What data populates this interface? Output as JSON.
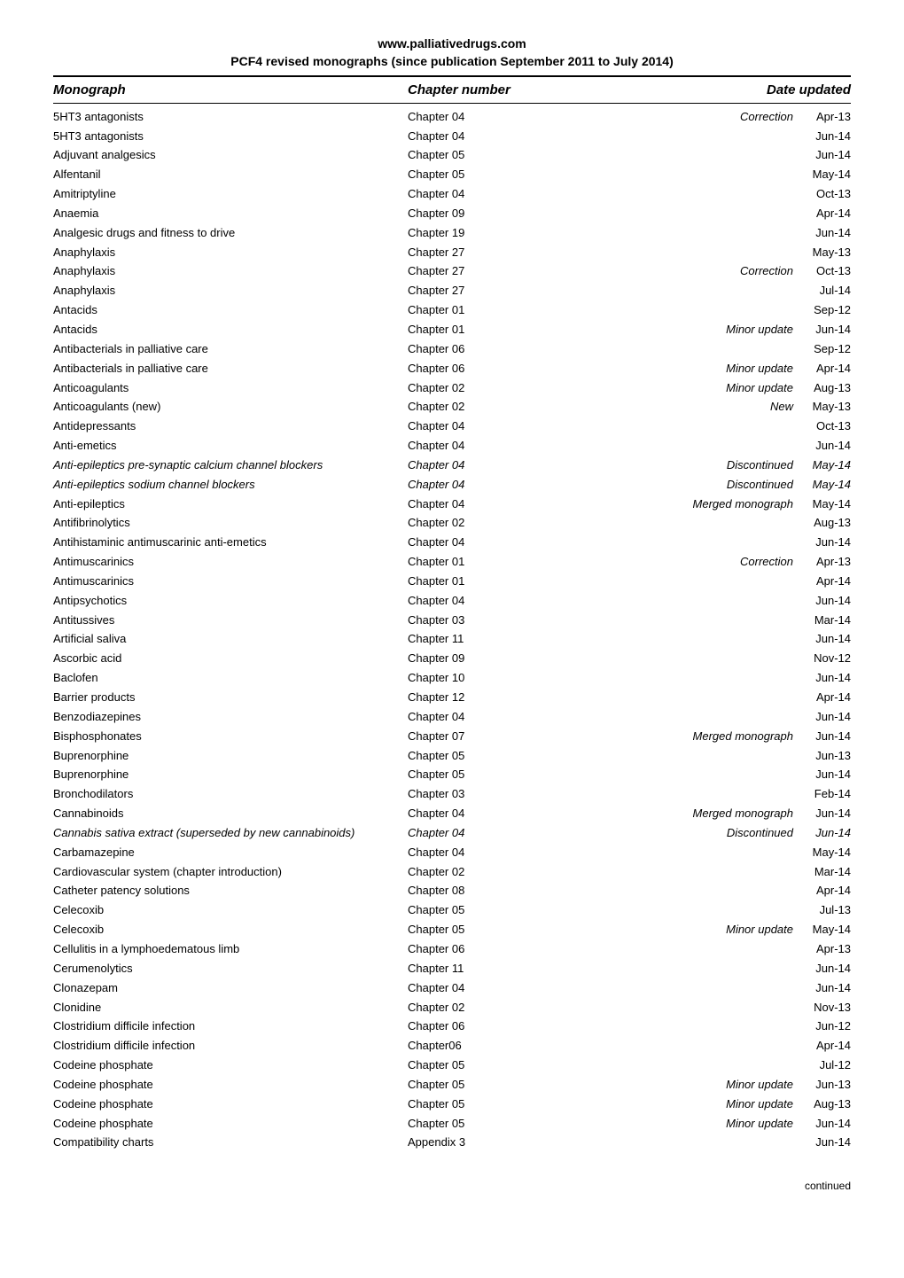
{
  "header": {
    "line1": "www.palliativedrugs.com",
    "line2": "PCF4 revised monographs (since publication September 2011 to July 2014)"
  },
  "columns": {
    "monograph": "Monograph",
    "chapter": "Chapter number",
    "date": "Date updated"
  },
  "footer": "continued",
  "rows": [
    {
      "mono": "5HT3 antagonists",
      "chap": "Chapter 04",
      "note": "Correction",
      "noteItalic": true,
      "date": "Apr-13"
    },
    {
      "mono": "5HT3 antagonists",
      "chap": "Chapter 04",
      "note": "",
      "date": "Jun-14"
    },
    {
      "mono": "Adjuvant analgesics",
      "chap": "Chapter 05",
      "note": "",
      "date": "Jun-14"
    },
    {
      "mono": "Alfentanil",
      "chap": "Chapter 05",
      "note": "",
      "date": "May-14"
    },
    {
      "mono": "Amitriptyline",
      "chap": "Chapter 04",
      "note": "",
      "date": "Oct-13"
    },
    {
      "mono": "Anaemia",
      "chap": "Chapter 09",
      "note": "",
      "date": "Apr-14"
    },
    {
      "mono": "Analgesic drugs and fitness to drive",
      "chap": "Chapter 19",
      "note": "",
      "date": "Jun-14"
    },
    {
      "mono": "Anaphylaxis",
      "chap": "Chapter 27",
      "note": "",
      "date": "May-13"
    },
    {
      "mono": "Anaphylaxis",
      "chap": "Chapter 27",
      "note": "Correction",
      "noteItalic": true,
      "date": "Oct-13"
    },
    {
      "mono": "Anaphylaxis",
      "chap": "Chapter 27",
      "note": "",
      "date": "Jul-14"
    },
    {
      "mono": "Antacids",
      "chap": "Chapter 01",
      "note": "",
      "date": "Sep-12"
    },
    {
      "mono": "Antacids",
      "chap": "Chapter 01",
      "note": "Minor update",
      "noteItalic": true,
      "date": "Jun-14"
    },
    {
      "mono": "Antibacterials in palliative care",
      "chap": "Chapter 06",
      "note": "",
      "date": "Sep-12"
    },
    {
      "mono": "Antibacterials in palliative care",
      "chap": "Chapter 06",
      "note": "Minor update",
      "noteItalic": true,
      "date": "Apr-14"
    },
    {
      "mono": "Anticoagulants",
      "chap": "Chapter 02",
      "note": "Minor update",
      "noteItalic": true,
      "date": "Aug-13"
    },
    {
      "mono": "Anticoagulants (new)",
      "chap": "Chapter 02",
      "note": "New",
      "noteItalic": true,
      "date": "May-13"
    },
    {
      "mono": "Antidepressants",
      "chap": "Chapter 04",
      "note": "",
      "date": "Oct-13"
    },
    {
      "mono": "Anti-emetics",
      "chap": "Chapter 04",
      "note": "",
      "date": "Jun-14"
    },
    {
      "mono": "Anti-epileptics pre-synaptic calcium channel blockers",
      "monoItalic": true,
      "chap": "Chapter 04",
      "chapItalic": true,
      "note": "Discontinued",
      "noteItalic": true,
      "date": "May-14",
      "dateItalic": true
    },
    {
      "mono": "Anti-epileptics sodium channel blockers",
      "monoItalic": true,
      "chap": "Chapter 04",
      "chapItalic": true,
      "note": "Discontinued",
      "noteItalic": true,
      "date": "May-14",
      "dateItalic": true
    },
    {
      "mono": "Anti-epileptics",
      "chap": "Chapter 04",
      "note": "Merged monograph",
      "noteItalic": true,
      "date": "May-14"
    },
    {
      "mono": "Antifibrinolytics",
      "chap": "Chapter 02",
      "note": "",
      "date": "Aug-13"
    },
    {
      "mono": "Antihistaminic antimuscarinic anti-emetics",
      "chap": "Chapter 04",
      "note": "",
      "date": "Jun-14"
    },
    {
      "mono": "Antimuscarinics",
      "chap": "Chapter 01",
      "note": "Correction",
      "noteItalic": true,
      "date": "Apr-13"
    },
    {
      "mono": "Antimuscarinics",
      "chap": "Chapter 01",
      "note": "",
      "date": "Apr-14"
    },
    {
      "mono": "Antipsychotics",
      "chap": "Chapter 04",
      "note": "",
      "date": "Jun-14"
    },
    {
      "mono": "Antitussives",
      "chap": "Chapter 03",
      "note": "",
      "date": "Mar-14"
    },
    {
      "mono": "Artificial saliva",
      "chap": "Chapter 11",
      "note": "",
      "date": "Jun-14"
    },
    {
      "mono": "Ascorbic acid",
      "chap": "Chapter 09",
      "note": "",
      "date": "Nov-12"
    },
    {
      "mono": "Baclofen",
      "chap": "Chapter 10",
      "note": "",
      "date": "Jun-14"
    },
    {
      "mono": "Barrier products",
      "chap": "Chapter 12",
      "note": "",
      "date": "Apr-14"
    },
    {
      "mono": "Benzodiazepines",
      "chap": "Chapter 04",
      "note": "",
      "date": "Jun-14"
    },
    {
      "mono": "Bisphosphonates",
      "chap": "Chapter 07",
      "note": "Merged monograph",
      "noteItalic": true,
      "date": "Jun-14"
    },
    {
      "mono": "Buprenorphine",
      "chap": "Chapter 05",
      "note": "",
      "date": "Jun-13"
    },
    {
      "mono": "Buprenorphine",
      "chap": "Chapter 05",
      "note": "",
      "date": "Jun-14"
    },
    {
      "mono": "Bronchodilators",
      "chap": "Chapter 03",
      "note": "",
      "date": "Feb-14"
    },
    {
      "mono": "Cannabinoids",
      "chap": "Chapter 04",
      "note": "Merged monograph",
      "noteItalic": true,
      "date": "Jun-14"
    },
    {
      "mono": "Cannabis sativa extract (superseded by new cannabinoids)",
      "monoItalic": true,
      "chap": "Chapter 04",
      "chapItalic": true,
      "note": "Discontinued",
      "noteItalic": true,
      "date": "Jun-14",
      "dateItalic": true
    },
    {
      "mono": "Carbamazepine",
      "chap": "Chapter 04",
      "note": "",
      "date": "May-14"
    },
    {
      "mono": "Cardiovascular system (chapter introduction)",
      "chap": "Chapter 02",
      "note": "",
      "date": "Mar-14"
    },
    {
      "mono": "Catheter patency solutions",
      "chap": "Chapter 08",
      "note": "",
      "date": "Apr-14"
    },
    {
      "mono": "Celecoxib",
      "chap": "Chapter 05",
      "note": "",
      "date": "Jul-13"
    },
    {
      "mono": "Celecoxib",
      "chap": "Chapter 05",
      "note": "Minor update",
      "noteItalic": true,
      "date": "May-14"
    },
    {
      "mono": "Cellulitis in a lymphoedematous limb",
      "chap": "Chapter 06",
      "note": "",
      "date": "Apr-13"
    },
    {
      "mono": "Cerumenolytics",
      "chap": "Chapter 11",
      "note": "",
      "date": "Jun-14"
    },
    {
      "mono": "Clonazepam",
      "chap": "Chapter 04",
      "note": "",
      "date": "Jun-14"
    },
    {
      "mono": "Clonidine",
      "chap": "Chapter 02",
      "note": "",
      "date": "Nov-13"
    },
    {
      "mono": "Clostridium difficile infection",
      "chap": "Chapter 06",
      "note": "",
      "date": "Jun-12"
    },
    {
      "mono": "Clostridium difficile infection",
      "chap": "Chapter06",
      "note": "",
      "date": "Apr-14"
    },
    {
      "mono": "Codeine phosphate",
      "chap": "Chapter 05",
      "note": "",
      "date": "Jul-12"
    },
    {
      "mono": "Codeine phosphate",
      "chap": "Chapter 05",
      "note": "Minor update",
      "noteItalic": true,
      "date": "Jun-13"
    },
    {
      "mono": "Codeine phosphate",
      "chap": "Chapter 05",
      "note": "Minor update",
      "noteItalic": true,
      "date": "Aug-13"
    },
    {
      "mono": "Codeine phosphate",
      "chap": "Chapter 05",
      "note": "Minor update",
      "noteItalic": true,
      "date": "Jun-14"
    },
    {
      "mono": "Compatibility charts",
      "chap": "Appendix 3",
      "note": "",
      "date": "Jun-14"
    }
  ]
}
